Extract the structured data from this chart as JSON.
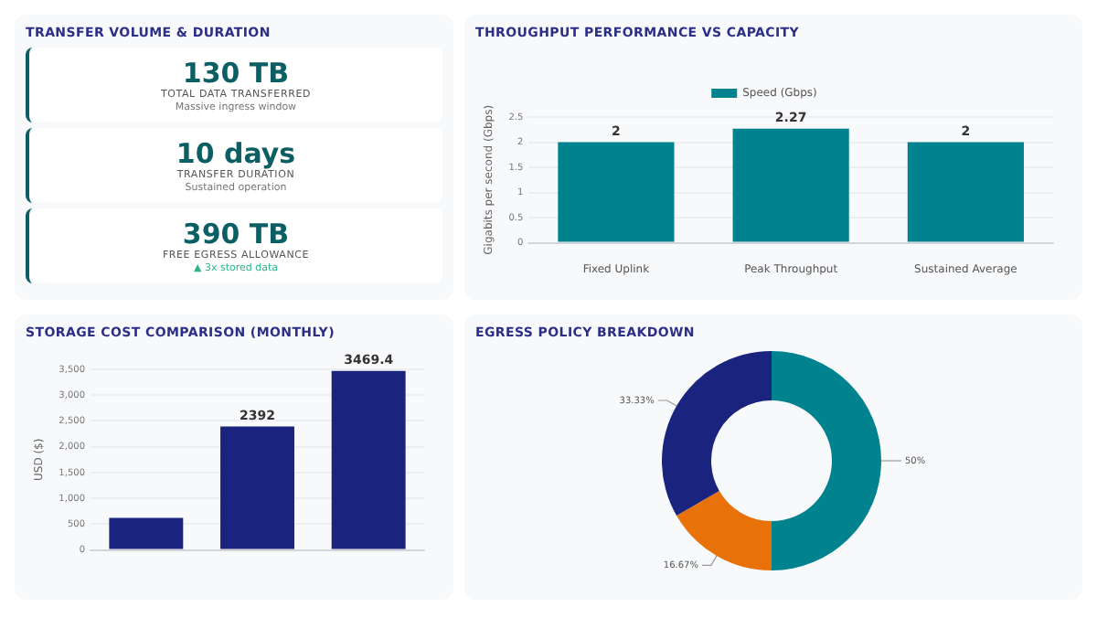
{
  "chart_data": [
    {
      "type": "other",
      "title": "TRANSFER VOLUME & DURATION",
      "annotations": [
        "130 TB",
        "TOTAL DATA TRANSFERRED",
        "Massive ingress window",
        "10 days",
        "TRANSFER DURATION",
        "Sustained operation",
        "390 TB",
        "FREE EGRESS ALLOWANCE",
        "▲ 3x stored data"
      ]
    },
    {
      "type": "bar",
      "title": "THROUGHPUT PERFORMANCE VS CAPACITY",
      "ylabel": "Gigabits per second (Gbps)",
      "categories": [
        "Fixed Uplink",
        "Peak Throughput",
        "Sustained Average"
      ],
      "series": [
        {
          "name": "Speed (Gbps)",
          "color": "#00838f",
          "values": [
            2,
            2.27,
            2
          ]
        }
      ],
      "ylim": [
        0,
        2.5
      ],
      "yticks": [
        0,
        0.5,
        1,
        1.5,
        2,
        2.5
      ],
      "grid": "y",
      "legend": "top",
      "data_labels": true
    },
    {
      "type": "bar",
      "title": "STORAGE COST COMPARISON (MONTHLY)",
      "ylabel": "USD ($)",
      "categories": [
        null,
        null,
        null
      ],
      "series": [
        {
          "color": "#1a237e",
          "values": [
            620,
            2392,
            3469.4
          ]
        }
      ],
      "value_labels": [
        null,
        "2392",
        "3469.4"
      ],
      "ylim": [
        0,
        3500
      ],
      "yticks": [
        0,
        {
          "value": 500,
          "label": "500"
        },
        {
          "value": 1000,
          "label": "1,000"
        },
        {
          "value": 1500,
          "label": "1,500"
        },
        {
          "value": 2000,
          "label": "2,000"
        },
        {
          "value": 2500,
          "label": "2,500"
        },
        {
          "value": 3000,
          "label": "3,000"
        },
        {
          "value": 3500,
          "label": "3,500"
        }
      ],
      "grid": "y"
    },
    {
      "type": "donut",
      "title": "EGRESS POLICY BREAKDOWN",
      "categories": [
        null,
        null,
        null
      ],
      "values": [
        50,
        16.67,
        33.33
      ],
      "colors": [
        "#00838f",
        "#e8710a",
        "#1a237e"
      ],
      "value_labels": [
        "50%",
        "16.67%",
        "33.33%"
      ],
      "legend": false
    }
  ]
}
